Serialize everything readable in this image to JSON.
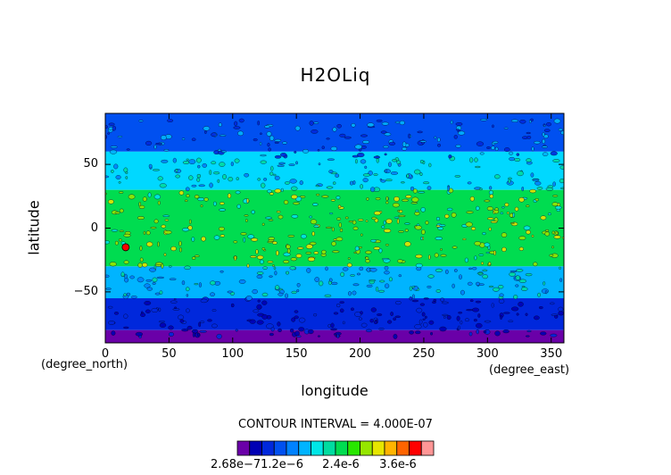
{
  "chart_data": {
    "type": "heatmap",
    "title": "H2OLiq",
    "xlabel": "longitude",
    "ylabel": "latitude",
    "x_unit": "(degree_east)",
    "y_unit": "(degree_north)",
    "xlim": [
      0,
      360
    ],
    "ylim": [
      -90,
      90
    ],
    "x_ticks": [
      0,
      50,
      100,
      150,
      200,
      250,
      300,
      350
    ],
    "y_ticks": [
      50,
      0,
      -50
    ],
    "contour_interval_text": "CONTOUR INTERVAL = 4.000E-07",
    "colorbar": {
      "labels": [
        "2.68e-7",
        "1.2e-6",
        "2.4e-6",
        "3.6e-6"
      ],
      "label_text": "2.68e−71.2e−6",
      "colors": [
        "#6a00a8",
        "#0000b4",
        "#0028dc",
        "#0050f0",
        "#0082ff",
        "#00b4ff",
        "#00e6e6",
        "#00dca0",
        "#00dc50",
        "#28e600",
        "#96e600",
        "#e6e600",
        "#ffb400",
        "#ff6400",
        "#ff0000",
        "#ff9696"
      ]
    },
    "latitude_bands": [
      {
        "lat_range": [
          60,
          90
        ],
        "level": "~1.0e-6",
        "color": "#0050f0"
      },
      {
        "lat_range": [
          30,
          60
        ],
        "level": "~1.6e-6",
        "color": "#00d8ff"
      },
      {
        "lat_range": [
          -30,
          30
        ],
        "level": "~2.4e-6",
        "color": "#00dc50"
      },
      {
        "lat_range": [
          -55,
          -30
        ],
        "level": "~1.6e-6",
        "color": "#00b4ff"
      },
      {
        "lat_range": [
          -80,
          -55
        ],
        "level": "~0.8e-6",
        "color": "#0028dc"
      },
      {
        "lat_range": [
          -90,
          -80
        ],
        "level": "~2.7e-7",
        "color": "#6a00a8"
      }
    ]
  }
}
